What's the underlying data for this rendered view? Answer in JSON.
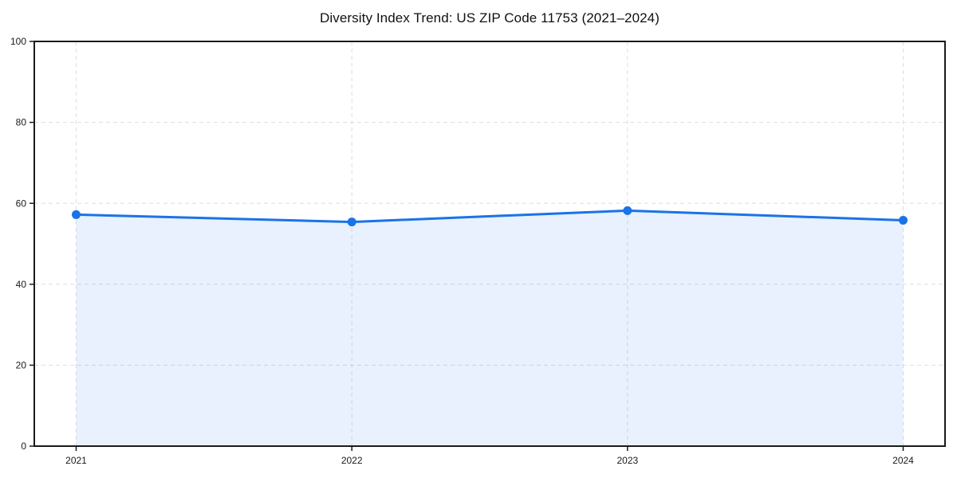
{
  "page": {
    "background": "#ffffff"
  },
  "chart_data": {
    "type": "area",
    "title": "Diversity Index Trend: US ZIP Code 11753 (2021–2024)",
    "series": [
      {
        "name": "Diversity Index",
        "values": [
          57.2,
          55.4,
          58.2,
          55.8
        ]
      }
    ],
    "categories": [
      "2021",
      "2022",
      "2023",
      "2024"
    ],
    "xlabel": "",
    "ylabel": "",
    "ylim": [
      0,
      100
    ],
    "yticks": [
      0,
      20,
      40,
      60,
      80,
      100
    ],
    "grid": true,
    "grid_style": "dashed",
    "legend": false,
    "legend_position": "none",
    "line_color": "#1a73e8",
    "marker_color": "#1a73e8",
    "fill_color": "rgba(26,115,232,0.10)",
    "grid_color": "#dedede",
    "axis_color": "#1a1a1a",
    "tick_label_color": "#1a1a1a",
    "title_color": "#111111"
  }
}
